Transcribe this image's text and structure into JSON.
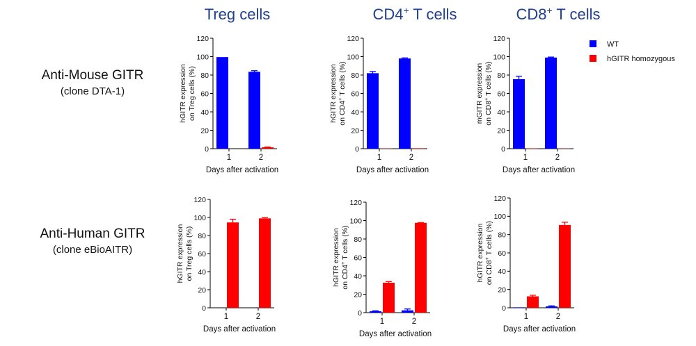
{
  "columns": [
    {
      "title_main": "Treg cells",
      "title_sup": ""
    },
    {
      "title_main": "CD4",
      "title_sup": "+",
      "title_tail": " T cells"
    },
    {
      "title_main": "CD8",
      "title_sup": "+",
      "title_tail": " T cells"
    }
  ],
  "rows": [
    {
      "label": "Anti-Mouse GITR",
      "sublabel": "(clone DTA-1)"
    },
    {
      "label": "Anti-Human GITR",
      "sublabel": "(clone eBioAITR)"
    }
  ],
  "legend": [
    {
      "label": "WT",
      "color": "#0000ff"
    },
    {
      "label": "hGITR homozygous",
      "color": "#ff0000"
    }
  ],
  "chart_data": [
    {
      "type": "bar",
      "row": 0,
      "col": 0,
      "categories": [
        "1",
        "2"
      ],
      "xlabel": "Days after activation",
      "ylabel_lines": [
        [
          "hGITR expression",
          "",
          ""
        ],
        [
          "on Treg cells (%)",
          "",
          ""
        ]
      ],
      "ylim": [
        0,
        120
      ],
      "yticks": [
        0,
        20,
        40,
        60,
        80,
        100,
        120
      ],
      "series": [
        {
          "name": "WT",
          "values": [
            99.5,
            83.5
          ],
          "errors": [
            0,
            1.2
          ]
        },
        {
          "name": "hGITR homozygous",
          "values": [
            0,
            1.5
          ],
          "errors": [
            0,
            0.3
          ]
        }
      ]
    },
    {
      "type": "bar",
      "row": 0,
      "col": 1,
      "categories": [
        "1",
        "2"
      ],
      "xlabel": "Days after activation",
      "ylabel_lines": [
        [
          "hGITR expression",
          "",
          ""
        ],
        [
          "on CD4",
          "+",
          " T cells (%)"
        ]
      ],
      "ylim": [
        0,
        120
      ],
      "yticks": [
        0,
        20,
        40,
        60,
        80,
        100,
        120
      ],
      "series": [
        {
          "name": "WT",
          "values": [
            82,
            98
          ],
          "errors": [
            1.8,
            0.6
          ]
        },
        {
          "name": "hGITR homozygous",
          "values": [
            0.3,
            0.5
          ],
          "errors": [
            0,
            0
          ]
        }
      ]
    },
    {
      "type": "bar",
      "row": 0,
      "col": 2,
      "categories": [
        "1",
        "2"
      ],
      "xlabel": "Days after activation",
      "ylabel_lines": [
        [
          "mGITR expression",
          "",
          ""
        ],
        [
          "on CD8",
          "+",
          " T cells (%)"
        ]
      ],
      "ylim": [
        0,
        120
      ],
      "yticks": [
        0,
        20,
        40,
        60,
        80,
        100,
        120
      ],
      "series": [
        {
          "name": "WT",
          "values": [
            75.5,
            99
          ],
          "errors": [
            3.2,
            0.5
          ]
        },
        {
          "name": "hGITR homozygous",
          "values": [
            0.3,
            0.3
          ],
          "errors": [
            0,
            0
          ]
        }
      ]
    },
    {
      "type": "bar",
      "row": 1,
      "col": 0,
      "categories": [
        "1",
        "2"
      ],
      "xlabel": "Days after activation",
      "ylabel_lines": [
        [
          "hGITR expression",
          "",
          ""
        ],
        [
          "on Treg cells (%)",
          "",
          ""
        ]
      ],
      "ylim": [
        0,
        120
      ],
      "yticks": [
        0,
        20,
        40,
        60,
        80,
        100,
        120
      ],
      "series": [
        {
          "name": "WT",
          "values": [
            0,
            0
          ],
          "errors": [
            0,
            0
          ]
        },
        {
          "name": "hGITR homozygous",
          "values": [
            94.5,
            99
          ],
          "errors": [
            3.5,
            0.8
          ]
        }
      ]
    },
    {
      "type": "bar",
      "row": 1,
      "col": 1,
      "categories": [
        "1",
        "2"
      ],
      "xlabel": "Days after activation",
      "ylabel_lines": [
        [
          "hGITR expression",
          "",
          ""
        ],
        [
          "on CD4",
          "+",
          " T cells (%)"
        ]
      ],
      "ylim": [
        0,
        120
      ],
      "yticks": [
        0,
        20,
        40,
        60,
        80,
        100,
        120
      ],
      "series": [
        {
          "name": "WT",
          "values": [
            1.5,
            2.5
          ],
          "errors": [
            0.5,
            1.5
          ]
        },
        {
          "name": "hGITR homozygous",
          "values": [
            32.5,
            97.5
          ],
          "errors": [
            1.2,
            0.4
          ]
        }
      ]
    },
    {
      "type": "bar",
      "row": 1,
      "col": 2,
      "categories": [
        "1",
        "2"
      ],
      "xlabel": "Days after activation",
      "ylabel_lines": [
        [
          "hGITR expression",
          "",
          ""
        ],
        [
          "on CD8",
          "+",
          " T cells (%)"
        ]
      ],
      "ylim": [
        0,
        120
      ],
      "yticks": [
        0,
        20,
        40,
        60,
        80,
        100,
        120
      ],
      "series": [
        {
          "name": "WT",
          "values": [
            0.5,
            1.5
          ],
          "errors": [
            0,
            0.6
          ]
        },
        {
          "name": "hGITR homozygous",
          "values": [
            12.5,
            90.5
          ],
          "errors": [
            1.2,
            3.0
          ]
        }
      ]
    }
  ]
}
